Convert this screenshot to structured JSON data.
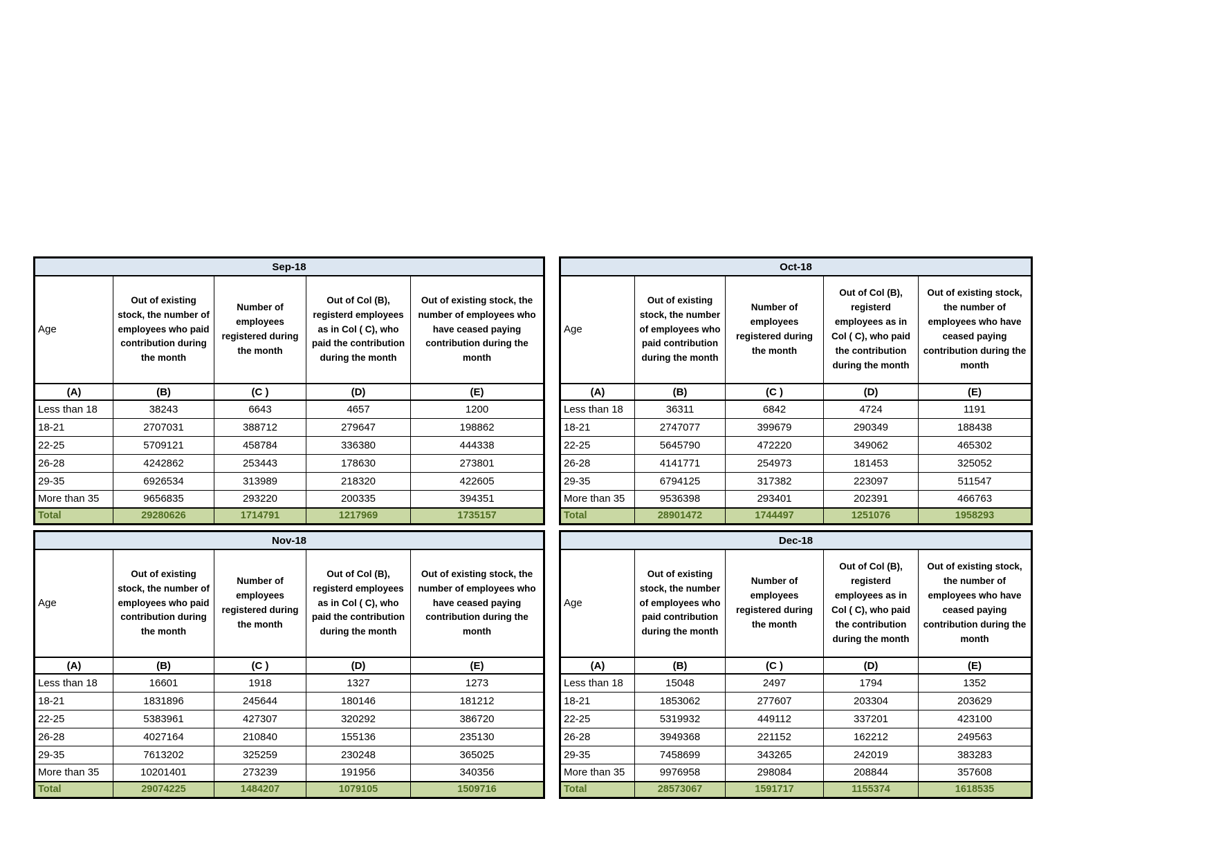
{
  "colors": {
    "title_bg": "#dce6f1",
    "total_bg": "#c9d8a3",
    "total_text": "#4e6b22"
  },
  "column_headers": {
    "age": "Age",
    "b": "Out of existing stock, the number of employees who paid contribution during the month",
    "c": "Number of employees registered during the month",
    "d": "Out of Col (B), registerd employees as in Col ( C), who paid the contribution during the month",
    "e": "Out of existing stock, the number of employees  who have ceased paying contribution during the month"
  },
  "column_letters": [
    "(A)",
    "(B)",
    "(C )",
    "(D)",
    "(E)"
  ],
  "tables": [
    {
      "month": "Sep-18",
      "rows": [
        {
          "label": "Less than 18",
          "values": [
            "38243",
            "6643",
            "4657",
            "1200"
          ]
        },
        {
          "label": "18-21",
          "values": [
            "2707031",
            "388712",
            "279647",
            "198862"
          ]
        },
        {
          "label": "22-25",
          "values": [
            "5709121",
            "458784",
            "336380",
            "444338"
          ]
        },
        {
          "label": "26-28",
          "values": [
            "4242862",
            "253443",
            "178630",
            "273801"
          ]
        },
        {
          "label": "29-35",
          "values": [
            "6926534",
            "313989",
            "218320",
            "422605"
          ]
        },
        {
          "label": "More than 35",
          "values": [
            "9656835",
            "293220",
            "200335",
            "394351"
          ]
        },
        {
          "label": "Total",
          "values": [
            "29280626",
            "1714791",
            "1217969",
            "1735157"
          ],
          "total": true
        }
      ]
    },
    {
      "month": "Oct-18",
      "rows": [
        {
          "label": "Less than 18",
          "values": [
            "36311",
            "6842",
            "4724",
            "1191"
          ]
        },
        {
          "label": "18-21",
          "values": [
            "2747077",
            "399679",
            "290349",
            "188438"
          ]
        },
        {
          "label": "22-25",
          "values": [
            "5645790",
            "472220",
            "349062",
            "465302"
          ]
        },
        {
          "label": "26-28",
          "values": [
            "4141771",
            "254973",
            "181453",
            "325052"
          ]
        },
        {
          "label": "29-35",
          "values": [
            "6794125",
            "317382",
            "223097",
            "511547"
          ]
        },
        {
          "label": "More than 35",
          "values": [
            "9536398",
            "293401",
            "202391",
            "466763"
          ]
        },
        {
          "label": "Total",
          "values": [
            "28901472",
            "1744497",
            "1251076",
            "1958293"
          ],
          "total": true
        }
      ]
    },
    {
      "month": "Nov-18",
      "rows": [
        {
          "label": "Less than 18",
          "values": [
            "16601",
            "1918",
            "1327",
            "1273"
          ]
        },
        {
          "label": "18-21",
          "values": [
            "1831896",
            "245644",
            "180146",
            "181212"
          ]
        },
        {
          "label": "22-25",
          "values": [
            "5383961",
            "427307",
            "320292",
            "386720"
          ]
        },
        {
          "label": "26-28",
          "values": [
            "4027164",
            "210840",
            "155136",
            "235130"
          ]
        },
        {
          "label": "29-35",
          "values": [
            "7613202",
            "325259",
            "230248",
            "365025"
          ]
        },
        {
          "label": "More than 35",
          "values": [
            "10201401",
            "273239",
            "191956",
            "340356"
          ]
        },
        {
          "label": "Total",
          "values": [
            "29074225",
            "1484207",
            "1079105",
            "1509716"
          ],
          "total": true
        }
      ]
    },
    {
      "month": "Dec-18",
      "rows": [
        {
          "label": "Less than 18",
          "values": [
            "15048",
            "2497",
            "1794",
            "1352"
          ]
        },
        {
          "label": "18-21",
          "values": [
            "1853062",
            "277607",
            "203304",
            "203629"
          ]
        },
        {
          "label": "22-25",
          "values": [
            "5319932",
            "449112",
            "337201",
            "423100"
          ]
        },
        {
          "label": "26-28",
          "values": [
            "3949368",
            "221152",
            "162212",
            "249563"
          ]
        },
        {
          "label": "29-35",
          "values": [
            "7458699",
            "343265",
            "242019",
            "383283"
          ]
        },
        {
          "label": "More than 35",
          "values": [
            "9976958",
            "298084",
            "208844",
            "357608"
          ]
        },
        {
          "label": "Total",
          "values": [
            "28573067",
            "1591717",
            "1155374",
            "1618535"
          ],
          "total": true
        }
      ]
    }
  ]
}
